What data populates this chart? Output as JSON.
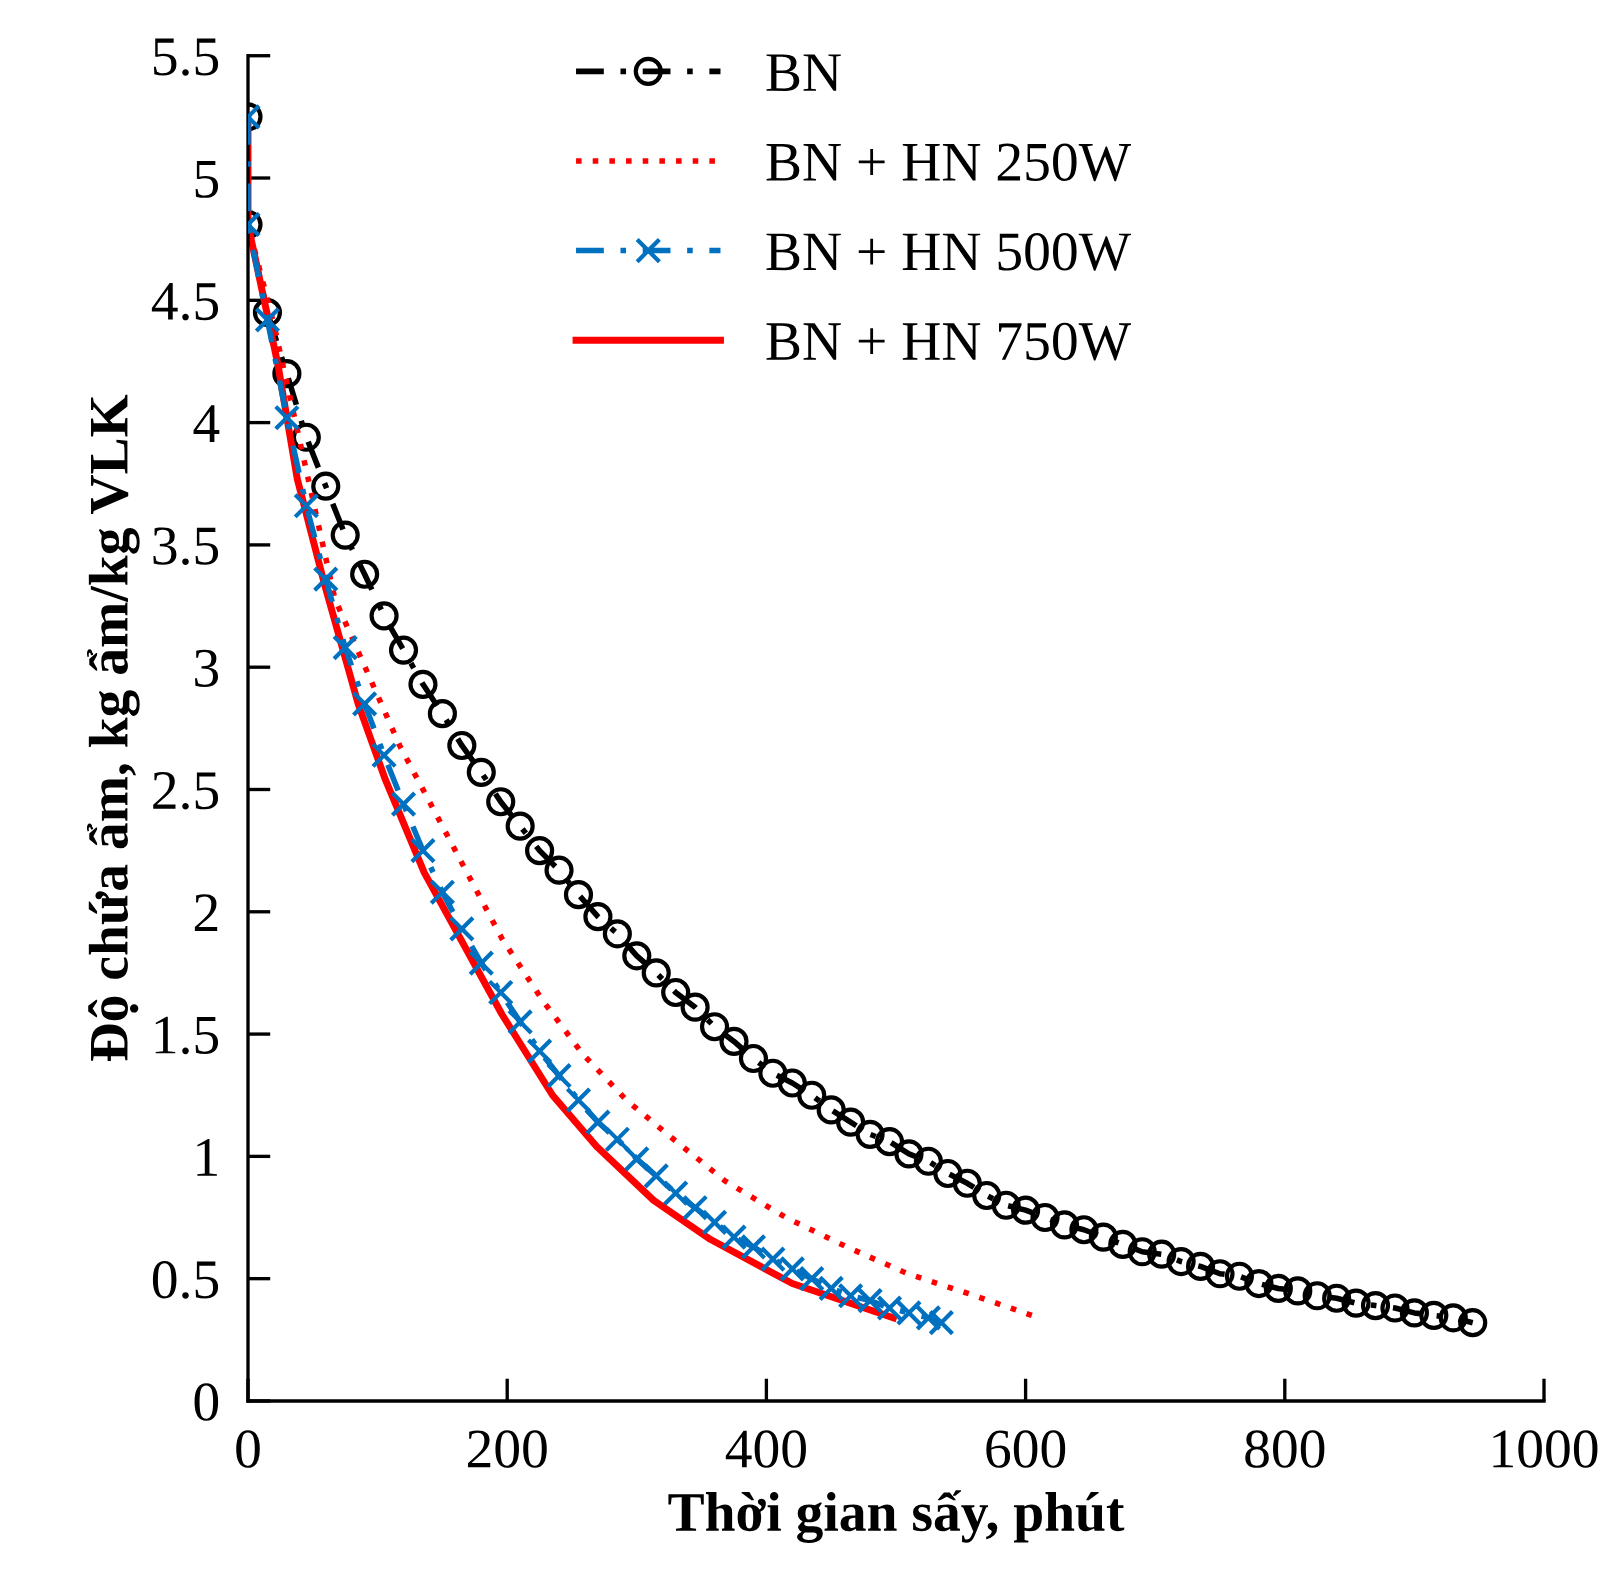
{
  "chart_data": {
    "type": "line",
    "xlabel": "Thời gian sấy, phút",
    "ylabel": "Độ chứa ẩm, kg ẩm/kg VLK",
    "xlim": [
      0,
      1000
    ],
    "ylim": [
      0,
      5.5
    ],
    "xticks": [
      0,
      200,
      400,
      600,
      800,
      1000
    ],
    "yticks": [
      0,
      {
        "value": 0.5,
        "label": "0.5"
      },
      1,
      {
        "value": 1.5,
        "label": "1.5"
      },
      2,
      {
        "value": 2.5,
        "label": "2.5"
      },
      3,
      {
        "value": 3.5,
        "label": "3.5"
      },
      4,
      {
        "value": 4.5,
        "label": "4.5"
      },
      5,
      {
        "value": 5.5,
        "label": "5.5"
      }
    ],
    "grid": false,
    "legend": "top right",
    "series": [
      {
        "name": "BN",
        "color": "#000000",
        "marker": "circle",
        "line_style": "dashed",
        "x": [
          0,
          0,
          15,
          30,
          45,
          60,
          75,
          90,
          105,
          120,
          135,
          150,
          165,
          180,
          195,
          210,
          225,
          240,
          255,
          270,
          285,
          300,
          315,
          330,
          345,
          360,
          375,
          390,
          405,
          420,
          435,
          450,
          465,
          480,
          495,
          510,
          525,
          540,
          555,
          570,
          585,
          600,
          615,
          630,
          645,
          660,
          675,
          690,
          705,
          720,
          735,
          750,
          765,
          780,
          795,
          810,
          825,
          840,
          855,
          870,
          885,
          900,
          915,
          930,
          945
        ],
        "values": [
          5.25,
          4.81,
          4.45,
          4.2,
          3.94,
          3.74,
          3.54,
          3.38,
          3.21,
          3.07,
          2.93,
          2.81,
          2.68,
          2.57,
          2.45,
          2.35,
          2.25,
          2.17,
          2.07,
          1.98,
          1.91,
          1.82,
          1.75,
          1.67,
          1.61,
          1.53,
          1.47,
          1.4,
          1.34,
          1.3,
          1.25,
          1.19,
          1.14,
          1.09,
          1.06,
          1.01,
          0.98,
          0.93,
          0.89,
          0.84,
          0.8,
          0.78,
          0.75,
          0.72,
          0.7,
          0.67,
          0.64,
          0.61,
          0.6,
          0.57,
          0.55,
          0.52,
          0.51,
          0.48,
          0.46,
          0.45,
          0.43,
          0.42,
          0.4,
          0.39,
          0.38,
          0.36,
          0.35,
          0.34,
          0.32
        ]
      },
      {
        "name": "BN + HN 250W",
        "color": "#ff0000",
        "marker": "none",
        "line_style": "dotted",
        "x": [
          0,
          0,
          20,
          67,
          117,
          169,
          196,
          227,
          258,
          292,
          326,
          368,
          415,
          462,
          509,
          561,
          610
        ],
        "values": [
          5.25,
          4.81,
          4.4,
          3.28,
          2.68,
          2.16,
          1.89,
          1.64,
          1.42,
          1.23,
          1.08,
          0.9,
          0.75,
          0.63,
          0.52,
          0.43,
          0.34
        ]
      },
      {
        "name": "BN + HN 500W",
        "color": "#0070c0",
        "marker": "cross",
        "line_style": "dashed",
        "x": [
          0,
          0,
          15,
          30,
          45,
          60,
          75,
          90,
          105,
          120,
          135,
          150,
          165,
          180,
          195,
          210,
          225,
          240,
          255,
          270,
          285,
          300,
          315,
          330,
          345,
          360,
          375,
          390,
          405,
          420,
          435,
          450,
          465,
          480,
          495,
          510,
          525,
          535
        ],
        "values": [
          5.25,
          4.81,
          4.42,
          4.02,
          3.66,
          3.36,
          3.08,
          2.85,
          2.64,
          2.44,
          2.25,
          2.08,
          1.93,
          1.79,
          1.67,
          1.55,
          1.43,
          1.33,
          1.23,
          1.14,
          1.07,
          0.99,
          0.92,
          0.85,
          0.79,
          0.73,
          0.67,
          0.63,
          0.58,
          0.54,
          0.5,
          0.46,
          0.43,
          0.41,
          0.38,
          0.36,
          0.34,
          0.32
        ]
      },
      {
        "name": "BN + HN 750W",
        "color": "#ff0000",
        "marker": "none",
        "line_style": "solid",
        "x": [
          0,
          0,
          23,
          38,
          59,
          85,
          106,
          136,
          196,
          235,
          269,
          313,
          357,
          420,
          498
        ],
        "values": [
          5.25,
          4.81,
          4.24,
          3.77,
          3.34,
          2.85,
          2.54,
          2.16,
          1.58,
          1.25,
          1.04,
          0.82,
          0.66,
          0.48,
          0.34
        ]
      }
    ]
  }
}
